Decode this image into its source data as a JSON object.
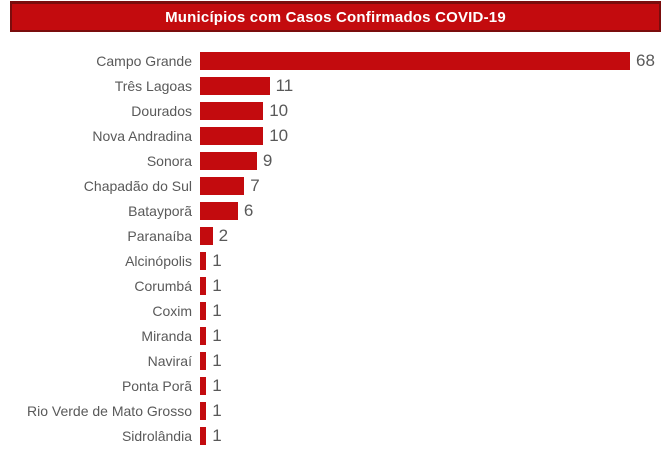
{
  "title": {
    "text": "Municípios com Casos Confirmados COVID-19"
  },
  "colors": {
    "bar_fill": "#c30b0e",
    "banner_fill": "#c30b0e",
    "banner_border": "#7a0d0d",
    "label_text": "#595959",
    "title_text": "#ffffff"
  },
  "chart_data": {
    "type": "bar",
    "orientation": "horizontal",
    "title": "Municípios com Casos Confirmados COVID-19",
    "xlabel": "",
    "ylabel": "",
    "xlim": [
      0,
      68
    ],
    "grid": false,
    "legend": false,
    "data_labels": true,
    "categories": [
      "Campo Grande",
      "Três Lagoas",
      "Dourados",
      "Nova Andradina",
      "Sonora",
      "Chapadão do Sul",
      "Batayporã",
      "Paranaíba",
      "Alcinópolis",
      "Corumbá",
      "Coxim",
      "Miranda",
      "Naviraí",
      "Ponta Porã",
      "Rio Verde de Mato Grosso",
      "Sidrolândia"
    ],
    "values": [
      68,
      11,
      10,
      10,
      9,
      7,
      6,
      2,
      1,
      1,
      1,
      1,
      1,
      1,
      1,
      1
    ]
  }
}
